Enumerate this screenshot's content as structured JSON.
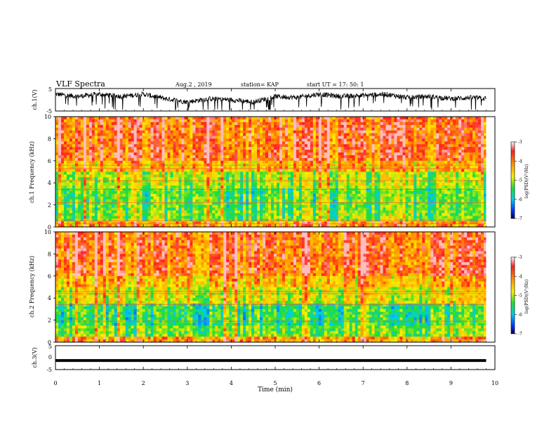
{
  "header": {
    "title": "VLF Spectra",
    "date": "Aug.2 , 2019",
    "station": "station= KAP",
    "start": "start UT = 17: 50: 1"
  },
  "chart_data": [
    {
      "type": "line",
      "panel": "ch1-waveform",
      "ylabel": "ch.1(V)",
      "ylim": [
        -5,
        5
      ],
      "yticks": [
        "5",
        "-5"
      ],
      "xlim": [
        0,
        10
      ],
      "series": [
        {
          "x": [
            0,
            0.5,
            1,
            1.5,
            2,
            2.5,
            3,
            3.5,
            4,
            4.5,
            5,
            5.5,
            6,
            6.5,
            7,
            7.5,
            8,
            8.5,
            9,
            9.5,
            9.8
          ],
          "y": [
            2.5,
            1.5,
            2.5,
            1.5,
            2.5,
            0.5,
            -1.0,
            0.5,
            0.0,
            -1.0,
            1.5,
            1.0,
            2.5,
            1.5,
            2.0,
            2.5,
            1.0,
            1.5,
            0.5,
            1.0,
            0.5
          ]
        }
      ]
    },
    {
      "type": "heatmap",
      "panel": "ch1-spectrogram",
      "ylabel": "ch.1 Frequency (kHz)",
      "ylim": [
        0,
        10
      ],
      "yticks": [
        "0",
        "2",
        "4",
        "6",
        "8",
        "10"
      ],
      "xlim": [
        0,
        10
      ],
      "colorbar": {
        "label": "log(PSD)(V²/Hz)",
        "range": [
          -7,
          -3
        ],
        "ticks": [
          "-3",
          "-4",
          "-5",
          "-6",
          "-7"
        ]
      }
    },
    {
      "type": "heatmap",
      "panel": "ch2-spectrogram",
      "ylabel": "ch.2 Frequency (kHz)",
      "ylim": [
        0,
        10
      ],
      "yticks": [
        "0",
        "2",
        "4",
        "6",
        "8",
        "10"
      ],
      "xlim": [
        0,
        10
      ],
      "colorbar": {
        "label": "log(PSD)(V²/Hz)",
        "range": [
          -7,
          -3
        ],
        "ticks": [
          "-3",
          "-4",
          "-5",
          "-6",
          "-7"
        ]
      }
    },
    {
      "type": "line",
      "panel": "ch3-waveform",
      "ylabel": "ch.3(V)",
      "ylim": [
        -5,
        5
      ],
      "yticks": [
        "5",
        "0",
        "-5"
      ],
      "xlim": [
        0,
        10
      ],
      "series": [
        {
          "x": [
            0,
            9.8
          ],
          "y": [
            -1.2,
            -1.2
          ]
        }
      ]
    }
  ],
  "xaxis": {
    "label": "Time (min)",
    "ticks": [
      "0",
      "1",
      "2",
      "3",
      "4",
      "5",
      "6",
      "7",
      "8",
      "9",
      "10"
    ]
  }
}
